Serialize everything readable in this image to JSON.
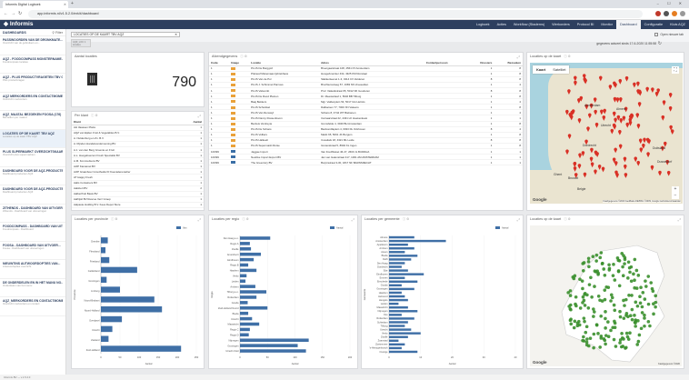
{
  "browser": {
    "tab_title": "Informis Digital Logboek",
    "url": "app.informis.nl/v1.5.2.0/ext/#/dashboard",
    "new_tab": "+",
    "window_controls": "– ☐ ✕"
  },
  "app": {
    "logo": "Informis",
    "menu": [
      "Logboek",
      "Acties",
      "Workflow (Staderns)",
      "Werkorders",
      "Protocol BI",
      "Monitor",
      "Dashboard",
      "Configuratie",
      "Kluis AQZ"
    ],
    "active_menu": "Dashboard"
  },
  "sidebar": {
    "title": "DASHBOARDS",
    "filter_label": "Filter",
    "items": [
      {
        "title": "PASSWOORDEN VAN DE DRONKMATE...",
        "desc": "Overzicht van de gebruikers en..."
      },
      {
        "title": "AQZ - FOODCOMPASS MONSTERNAME...",
        "desc": "Foodcompass locaties"
      },
      {
        "title": "AQZ - PLUS PRODUCTVRAGETEN TBV GE...",
        "desc": "Plus productvragen"
      },
      {
        "title": "AQZ MERKORDERS EN CONTACTMOME...",
        "desc": "Overzicht merkorders"
      },
      {
        "title": "AQZ_MAATAL BEZOEKEN FOOSA (176)",
        "desc": "Bezoeken per maand"
      },
      {
        "title": "LOCATIES OP DE KAART TBV AQZ",
        "desc": "Locaties op de kaart TBV AQZ"
      },
      {
        "title": "PLUS SUPERMARKT OVERZICHTSKAART...",
        "desc": "Overzicht plus supermarkten"
      },
      {
        "title": "DASHBOARD VOOR DE AQZ-PRODUCTE...",
        "desc": "Dashboard producten AQZ"
      },
      {
        "title": "DASHBOARD VOOR DE AQZ-PRODUCTE...",
        "desc": "Dashboard producten AQZ"
      },
      {
        "title": "ZITHENDS - DASHBOARD VAN UITVOER...",
        "desc": "Zithends - Dashboard van uitvoeringen"
      },
      {
        "title": "FOODCOMPASS - DASHBOARD VAN UITV...",
        "desc": "Foodcompass - Dashboard"
      },
      {
        "title": "FOOSA - DASHBOARD VAN UITVOER...",
        "desc": "Foosa - Dashboard van uitvoeringen"
      },
      {
        "title": "NIEUWTINS AUTWOORDOPTIES VAN...",
        "desc": "Antwoordopties overzicht"
      },
      {
        "title": "DE ONDERDELEN EN IN HET MANU NO...",
        "desc": "Onderdelen van het menu"
      },
      {
        "title": "AQZ_MERKORDERS EN CONTACTMOME...",
        "desc": "Overzicht merkorders en contact"
      }
    ],
    "selected_index": 5
  },
  "filter": {
    "value": "LOCATIES OP DE KAART TBV AQZ",
    "chip": "AQZ_LOC 1 locaties",
    "updated": "gegevens actueel sinds 17-6-2020 11:55:58",
    "open_mode": "Open nieuwe tab"
  },
  "kpi": {
    "title": "Aantal locaties",
    "value": "790"
  },
  "per_klant": {
    "title": "Per klant",
    "columns": [
      "Klant",
      "Aantal"
    ],
    "rows": [
      [
        "AH Vaassen Plaza",
        "1"
      ],
      [
        "AQZ van Eijden Fruit & Vegetables B.V.",
        "1"
      ],
      [
        "A. Nuldenburg en Zn. B.V.",
        "1"
      ],
      [
        "A. Rijnden Handelsonderneming BV",
        "1"
      ],
      [
        "A.J. van den Berg Groente en Fruit",
        "1"
      ],
      [
        "A.L. Hoogeboezem Fresh Specialist BV",
        "1"
      ],
      [
        "A.M. Kommerkens BV",
        "1"
      ],
      [
        "AJIP Kamaroel BV",
        "1"
      ],
      [
        "AJIP Graanboer Grootheidel D Koecaderenadrer",
        "1"
      ],
      [
        "AT Happy Fresh",
        "1"
      ],
      [
        "Aalts Containers BV",
        "1"
      ],
      [
        "Aalsbert BV",
        "2"
      ],
      [
        "Aalbertfruit Basis BV",
        "1"
      ],
      [
        "Aalfrijsil BV Rescue Verz Groep",
        "1"
      ],
      [
        "Aalpaste Holding B.V. Kees Depot Store",
        "1"
      ]
    ]
  },
  "afzend": {
    "title": "Afzendgegevens",
    "columns": [
      "Code",
      "Image",
      "Locatie",
      "Adres",
      "Contactpersoon",
      "Dossiers",
      "Bezoeken"
    ],
    "rows": [
      [
        "1",
        "o",
        "PLUS De Burggrof",
        "Broergaarstraat 108, 4561 PJ Amsterdam",
        "",
        "1",
        "8"
      ],
      [
        "1",
        "o",
        "Plaineaf Mekemaas Ijsbrekhaus",
        "Hoogerkneinter 434, 4325 KM Rozelaar",
        "",
        "1",
        "8"
      ],
      [
        "1",
        "o",
        "PLUS Van de Pol",
        "Slakkenleenet 1-3, 4314 CX Zelderen",
        "",
        "8",
        "8"
      ],
      [
        "1",
        "o",
        "PLUS J. Schimmel Parcous",
        "Bruchterceiweg 57, 1683 NS Vreeselden",
        "",
        "1",
        "4"
      ],
      [
        "1",
        "o",
        "PLUS Valsvorkt",
        "Prof. Vaiketkstraat 65, 5012 NK Gouderen",
        "",
        "8",
        "8"
      ],
      [
        "1",
        "o",
        "PLUS De Rood Pleinen",
        "Dr. Meestelraaf 1, 5646 BB Tilburg",
        "",
        "1",
        "8"
      ],
      [
        "1",
        "o",
        "Baaj Bekkers",
        "Mgr. Valdenplein 54, 5017 GG Helmts",
        "",
        "1",
        "4"
      ],
      [
        "1",
        "o",
        "PLUS Schuldsel",
        "Dalbacsen 77, 7000 XN Valeens",
        "",
        "1",
        "8"
      ],
      [
        "1",
        "o",
        "PLUS Van Renswyl",
        "Schans 8, 4744 WT Biebanen",
        "",
        "1",
        "4"
      ],
      [
        "1",
        "o",
        "PLUS Danny Rossenboom",
        "Carnaarstraat 22, 4431 LK Hoekenkeek",
        "",
        "1",
        "1"
      ],
      [
        "1",
        "o",
        "Berdeis Verdreyia",
        "Gronsfelde 4, 3040 BH Amsterdam",
        "",
        "1",
        "8"
      ],
      [
        "1",
        "o",
        "PLUS De Schans",
        "Bardverdfaplein 4, 6033 DL Ockhoven",
        "",
        "8",
        "4"
      ],
      [
        "1",
        "o",
        "PLUS Vollters",
        "Markt 65, 5091 JK Burgum",
        "",
        "1",
        "8"
      ],
      [
        "1",
        "o",
        "PLUS Halkeelt",
        "Cosaitals 18, 4321 ML Leide",
        "",
        "8",
        "8"
      ],
      [
        "1",
        "o",
        "PLUS Supermarkt Rotse",
        "Grotenskraal 5, 8902 KL Ingen",
        "",
        "1",
        "8"
      ],
      [
        "100/99",
        "i",
        "Jaggae Import",
        "Van Fredhfaiset 46-47, 2600 JL BUDDHA",
        "",
        "1",
        "1"
      ],
      [
        "100/99",
        "i",
        "Nestlive Import Export BV",
        "Jan van Galenstraat 417, 1061 AM AMSTERDAM",
        "",
        "1",
        "1"
      ],
      [
        "100/99",
        "i",
        "The Greentury BV",
        "Borpinstraat 3-30, 1817 NF BARNSRECHT",
        "",
        "1",
        "1"
      ]
    ]
  },
  "map1": {
    "title": "Locaties op de kaart",
    "tab_map": "Kaart",
    "tab_sat": "Satelliet",
    "google": "Google",
    "copyright": "Kaartgegevens ©2020 GeoBasis-DE/BKG ©2009, Google  Gebruiksvoorwaarden",
    "cities": [
      "Amsterdam",
      "Almere",
      "Utrecht",
      "Dordrecht",
      "Brussel",
      "Belgie",
      "Duitsland",
      "Dusseldorf",
      "Ghent"
    ]
  },
  "chart_provincie": {
    "title": "Locaties per provincie",
    "legend": "Van",
    "chart_data": {
      "type": "bar",
      "orientation": "horizontal",
      "categories": [
        "Drenthe",
        "Flevoland",
        "Friesland",
        "Gelderland",
        "Groningen",
        "Limburg",
        "Noord-Brabant",
        "Noord-Holland",
        "Overijssel",
        "Utrecht",
        "Zeeland",
        "Zuid-Holland"
      ],
      "values": [
        18,
        12,
        22,
        95,
        15,
        50,
        140,
        160,
        55,
        30,
        20,
        210
      ],
      "xlim": [
        0,
        250
      ],
      "ticks": [
        0,
        50,
        100,
        150,
        200,
        250
      ],
      "xlabel": "Aantal",
      "ylabel": "Provincie"
    }
  },
  "chart_regio": {
    "title": "Locaties per regio",
    "legend": "Aantal",
    "chart_data": {
      "type": "bar",
      "orientation": "horizontal",
      "categories": [
        "Den Haag e.o.",
        "Regio A",
        "Zwolle",
        "Amersfoort",
        "Eindhoven",
        "Regio B",
        "Haarlem",
        "Venlo",
        "Leiden",
        "Arnhem",
        "Tilburg e.o.",
        "Rotterdam",
        "Gouda",
        "Zuid-Holland Noord",
        "Breda",
        "Utrecht",
        "Maastricht",
        "Regio C",
        "Regio D",
        "Nijmegen",
        "Groningen",
        "Utrecht Zuid"
      ],
      "values": [
        55,
        18,
        20,
        38,
        25,
        15,
        30,
        12,
        10,
        28,
        48,
        30,
        14,
        50,
        15,
        22,
        35,
        18,
        16,
        125,
        105,
        120
      ],
      "xlim": [
        0,
        200
      ],
      "ticks": [
        0,
        50,
        100,
        150,
        200
      ],
      "xlabel": "Aantal",
      "ylabel": "Regio"
    }
  },
  "chart_gemeente": {
    "title": "Locaties per gemeente",
    "legend": "Aantal",
    "chart_data": {
      "type": "bar",
      "orientation": "horizontal",
      "categories": [
        "Almere",
        "Amsterdam",
        "Apeldoorn",
        "Arnhem",
        "Assen",
        "Breda",
        "Delft",
        "Den Haag",
        "Dordrecht",
        "Ede",
        "Eindhoven",
        "Emmen",
        "Enschede",
        "Gouda",
        "Groningen",
        "Haarlem",
        "Helmond",
        "Hengelo",
        "Leiden",
        "Maastricht",
        "Nijmegen",
        "Oss",
        "Rotterdam",
        "Schiedam",
        "Tilburg",
        "Utrecht",
        "Venlo",
        "Zwolle",
        "Zaanstad",
        "Zoetermeer",
        "'s-Hertogenbosch",
        "Overige"
      ],
      "values": [
        8,
        18,
        6,
        8,
        5,
        9,
        7,
        5,
        4,
        6,
        11,
        5,
        9,
        4,
        8,
        4,
        5,
        6,
        3,
        6,
        9,
        4,
        8,
        6,
        5,
        7,
        10,
        6,
        3,
        5,
        4,
        9
      ],
      "xlim": [
        0,
        40
      ],
      "ticks": [
        0,
        10,
        20,
        30,
        40
      ],
      "xlabel": "Aantal",
      "ylabel": "Gemeente"
    }
  },
  "map2": {
    "title": "Locaties op de kaart",
    "google": "Google",
    "copyright": "Kaartgegevens ©2020"
  },
  "status": {
    "text": "Informis BV — v.1.5.2.0"
  }
}
